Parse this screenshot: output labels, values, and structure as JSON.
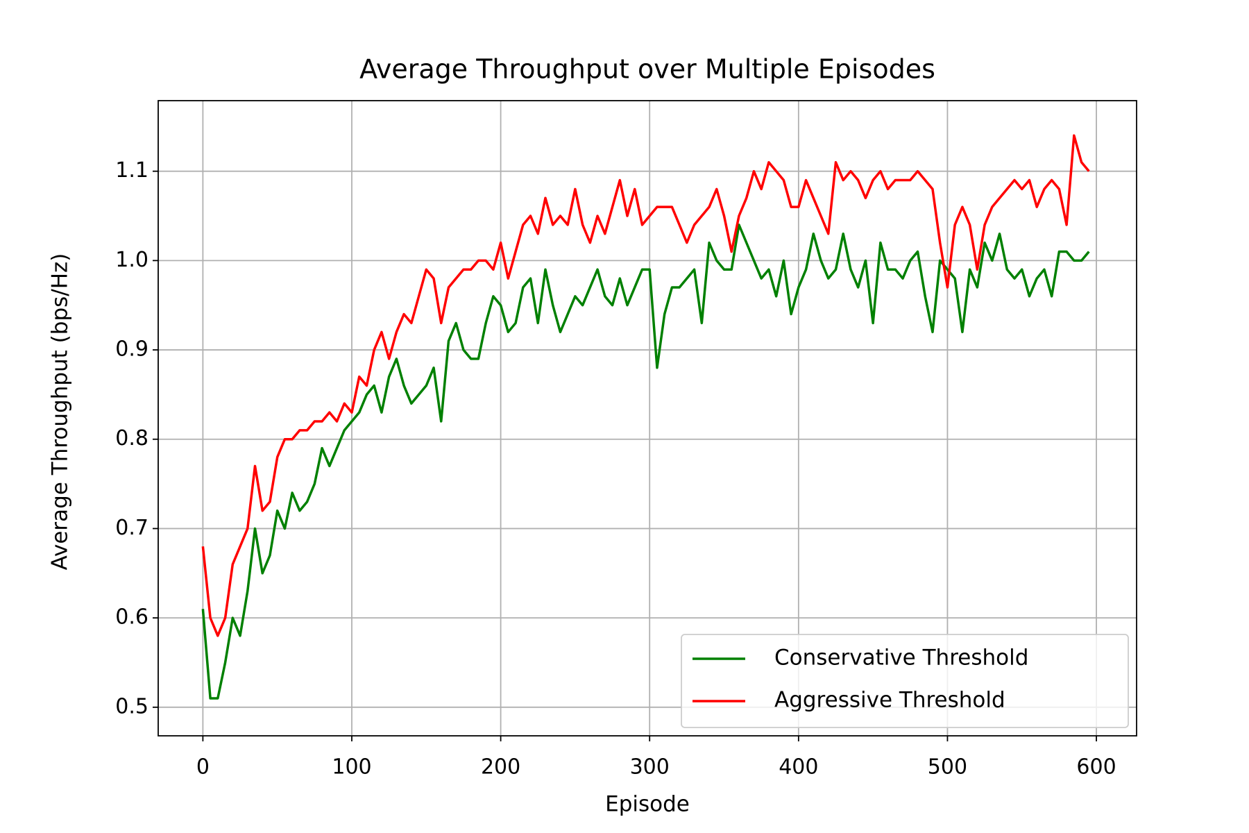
{
  "chart_data": {
    "type": "line",
    "title": "Average Throughput over Multiple Episodes",
    "xlabel": "Episode",
    "ylabel": "Average Throughput (bps/Hz)",
    "x": [
      0,
      5,
      10,
      15,
      20,
      25,
      30,
      35,
      40,
      45,
      50,
      55,
      60,
      65,
      70,
      75,
      80,
      85,
      90,
      95,
      100,
      105,
      110,
      115,
      120,
      125,
      130,
      135,
      140,
      145,
      150,
      155,
      160,
      165,
      170,
      175,
      180,
      185,
      190,
      195,
      200,
      205,
      210,
      215,
      220,
      225,
      230,
      235,
      240,
      245,
      250,
      255,
      260,
      265,
      270,
      275,
      280,
      285,
      290,
      295,
      300,
      305,
      310,
      315,
      320,
      325,
      330,
      335,
      340,
      345,
      350,
      355,
      360,
      365,
      370,
      375,
      380,
      385,
      390,
      395,
      400,
      405,
      410,
      415,
      420,
      425,
      430,
      435,
      440,
      445,
      450,
      455,
      460,
      465,
      470,
      475,
      480,
      485,
      490,
      495,
      500,
      505,
      510,
      515,
      520,
      525,
      530,
      535,
      540,
      545,
      550,
      555,
      560,
      565,
      570,
      575,
      580,
      585,
      590,
      595
    ],
    "series": [
      {
        "name": "Conservative Threshold",
        "color": "#008000",
        "values": [
          0.61,
          0.51,
          0.51,
          0.55,
          0.6,
          0.58,
          0.63,
          0.7,
          0.65,
          0.67,
          0.72,
          0.7,
          0.74,
          0.72,
          0.73,
          0.75,
          0.79,
          0.77,
          0.79,
          0.81,
          0.82,
          0.83,
          0.85,
          0.86,
          0.83,
          0.87,
          0.89,
          0.86,
          0.84,
          0.85,
          0.86,
          0.88,
          0.82,
          0.91,
          0.93,
          0.9,
          0.89,
          0.89,
          0.93,
          0.96,
          0.95,
          0.92,
          0.93,
          0.97,
          0.98,
          0.93,
          0.99,
          0.95,
          0.92,
          0.94,
          0.96,
          0.95,
          0.97,
          0.99,
          0.96,
          0.95,
          0.98,
          0.95,
          0.97,
          0.99,
          0.99,
          0.88,
          0.94,
          0.97,
          0.97,
          0.98,
          0.99,
          0.93,
          1.02,
          1.0,
          0.99,
          0.99,
          1.04,
          1.02,
          1.0,
          0.98,
          0.99,
          0.96,
          1.0,
          0.94,
          0.97,
          0.99,
          1.03,
          1.0,
          0.98,
          0.99,
          1.03,
          0.99,
          0.97,
          1.0,
          0.93,
          1.02,
          0.99,
          0.99,
          0.98,
          1.0,
          1.01,
          0.96,
          0.92,
          1.0,
          0.99,
          0.98,
          0.92,
          0.99,
          0.97,
          1.02,
          1.0,
          1.03,
          0.99,
          0.98,
          0.99,
          0.96,
          0.98,
          0.99,
          0.96,
          1.01,
          1.01,
          1.0,
          1.0,
          1.01
        ]
      },
      {
        "name": "Aggressive Threshold",
        "color": "#ff0000",
        "values": [
          0.68,
          0.6,
          0.58,
          0.6,
          0.66,
          0.68,
          0.7,
          0.77,
          0.72,
          0.73,
          0.78,
          0.8,
          0.8,
          0.81,
          0.81,
          0.82,
          0.82,
          0.83,
          0.82,
          0.84,
          0.83,
          0.87,
          0.86,
          0.9,
          0.92,
          0.89,
          0.92,
          0.94,
          0.93,
          0.96,
          0.99,
          0.98,
          0.93,
          0.97,
          0.98,
          0.99,
          0.99,
          1.0,
          1.0,
          0.99,
          1.02,
          0.98,
          1.01,
          1.04,
          1.05,
          1.03,
          1.07,
          1.04,
          1.05,
          1.04,
          1.08,
          1.04,
          1.02,
          1.05,
          1.03,
          1.06,
          1.09,
          1.05,
          1.08,
          1.04,
          1.05,
          1.06,
          1.06,
          1.06,
          1.04,
          1.02,
          1.04,
          1.05,
          1.06,
          1.08,
          1.05,
          1.01,
          1.05,
          1.07,
          1.1,
          1.08,
          1.11,
          1.1,
          1.09,
          1.06,
          1.06,
          1.09,
          1.07,
          1.05,
          1.03,
          1.11,
          1.09,
          1.1,
          1.09,
          1.07,
          1.09,
          1.1,
          1.08,
          1.09,
          1.09,
          1.09,
          1.1,
          1.09,
          1.08,
          1.02,
          0.97,
          1.04,
          1.06,
          1.04,
          0.99,
          1.04,
          1.06,
          1.07,
          1.08,
          1.09,
          1.08,
          1.09,
          1.06,
          1.08,
          1.09,
          1.08,
          1.04,
          1.14,
          1.11,
          1.1
        ]
      }
    ],
    "xlim": [
      -30,
      627
    ],
    "ylim": [
      0.468,
      1.179
    ],
    "xticks": [
      0,
      100,
      200,
      300,
      400,
      500,
      600
    ],
    "yticks": [
      0.5,
      0.6,
      0.7,
      0.8,
      0.9,
      {
        "value": 1,
        "label": "1.0"
      },
      1.1
    ],
    "grid": true,
    "legend": "lower right"
  }
}
